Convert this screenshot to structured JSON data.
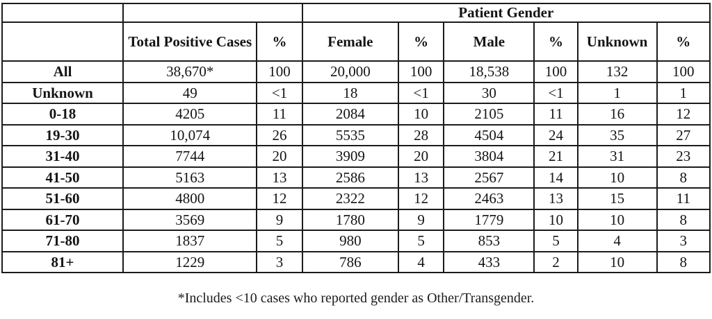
{
  "table": {
    "gender_header": "Patient Gender",
    "columns": [
      "",
      "Total Positive Cases",
      "%",
      "Female",
      "%",
      "Male",
      "%",
      "Unknown",
      "%"
    ],
    "rows": [
      {
        "label": "All",
        "values": [
          "38,670*",
          "100",
          "20,000",
          "100",
          "18,538",
          "100",
          "132",
          "100"
        ]
      },
      {
        "label": "Unknown",
        "values": [
          "49",
          "<1",
          "18",
          "<1",
          "30",
          "<1",
          "1",
          "1"
        ]
      },
      {
        "label": "0-18",
        "values": [
          "4205",
          "11",
          "2084",
          "10",
          "2105",
          "11",
          "16",
          "12"
        ]
      },
      {
        "label": "19-30",
        "values": [
          "10,074",
          "26",
          "5535",
          "28",
          "4504",
          "24",
          "35",
          "27"
        ]
      },
      {
        "label": "31-40",
        "values": [
          "7744",
          "20",
          "3909",
          "20",
          "3804",
          "21",
          "31",
          "23"
        ]
      },
      {
        "label": "41-50",
        "values": [
          "5163",
          "13",
          "2586",
          "13",
          "2567",
          "14",
          "10",
          "8"
        ]
      },
      {
        "label": "51-60",
        "values": [
          "4800",
          "12",
          "2322",
          "12",
          "2463",
          "13",
          "15",
          "11"
        ]
      },
      {
        "label": "61-70",
        "values": [
          "3569",
          "9",
          "1780",
          "9",
          "1779",
          "10",
          "10",
          "8"
        ]
      },
      {
        "label": "71-80",
        "values": [
          "1837",
          "5",
          "980",
          "5",
          "853",
          "5",
          "4",
          "3"
        ]
      },
      {
        "label": "81+",
        "values": [
          "1229",
          "3",
          "786",
          "4",
          "433",
          "2",
          "10",
          "8"
        ]
      }
    ],
    "footnote": "*Includes <10 cases who reported gender as Other/Transgender."
  }
}
